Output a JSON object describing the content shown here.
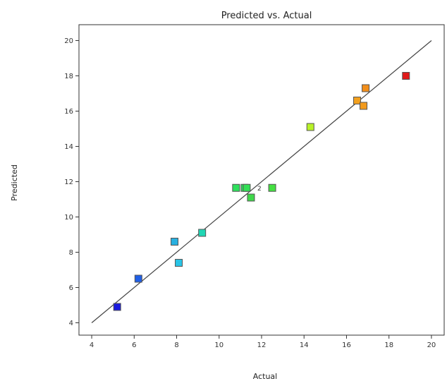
{
  "chart_data": {
    "type": "scatter",
    "title": "Predicted vs. Actual",
    "xlabel": "Actual",
    "ylabel": "Predicted",
    "xlim": [
      3.4,
      20.6
    ],
    "ylim": [
      3.3,
      20.9
    ],
    "xticks": [
      4,
      6,
      8,
      10,
      12,
      14,
      16,
      18,
      20
    ],
    "yticks": [
      4,
      6,
      8,
      10,
      12,
      14,
      16,
      18,
      20
    ],
    "grid": false,
    "reference_line": {
      "from": [
        4,
        4
      ],
      "to": [
        20,
        20
      ],
      "color": "#444444"
    },
    "points": [
      {
        "x": 5.2,
        "y": 4.9,
        "color": "#1a1adf"
      },
      {
        "x": 6.2,
        "y": 6.5,
        "color": "#1f5fe6"
      },
      {
        "x": 7.9,
        "y": 8.6,
        "color": "#29b0e0"
      },
      {
        "x": 8.1,
        "y": 7.4,
        "color": "#29c4e6"
      },
      {
        "x": 9.2,
        "y": 9.1,
        "color": "#20d6b4"
      },
      {
        "x": 10.8,
        "y": 11.65,
        "color": "#2ee05c"
      },
      {
        "x": 11.2,
        "y": 11.65,
        "color": "#2ee05c"
      },
      {
        "x": 11.3,
        "y": 11.65,
        "color": "#33e055"
      },
      {
        "x": 11.5,
        "y": 11.1,
        "color": "#3fd84a"
      },
      {
        "x": 12.5,
        "y": 11.65,
        "color": "#44e041"
      },
      {
        "x": 14.3,
        "y": 15.1,
        "color": "#b8f227"
      },
      {
        "x": 16.5,
        "y": 16.6,
        "color": "#f2a01e"
      },
      {
        "x": 16.8,
        "y": 16.3,
        "color": "#f29a1c"
      },
      {
        "x": 16.9,
        "y": 17.3,
        "color": "#f28e1a"
      },
      {
        "x": 18.8,
        "y": 18.0,
        "color": "#e01a1a"
      }
    ],
    "annotations": [
      {
        "text": "2",
        "x": 11.8,
        "y": 11.65
      }
    ]
  }
}
